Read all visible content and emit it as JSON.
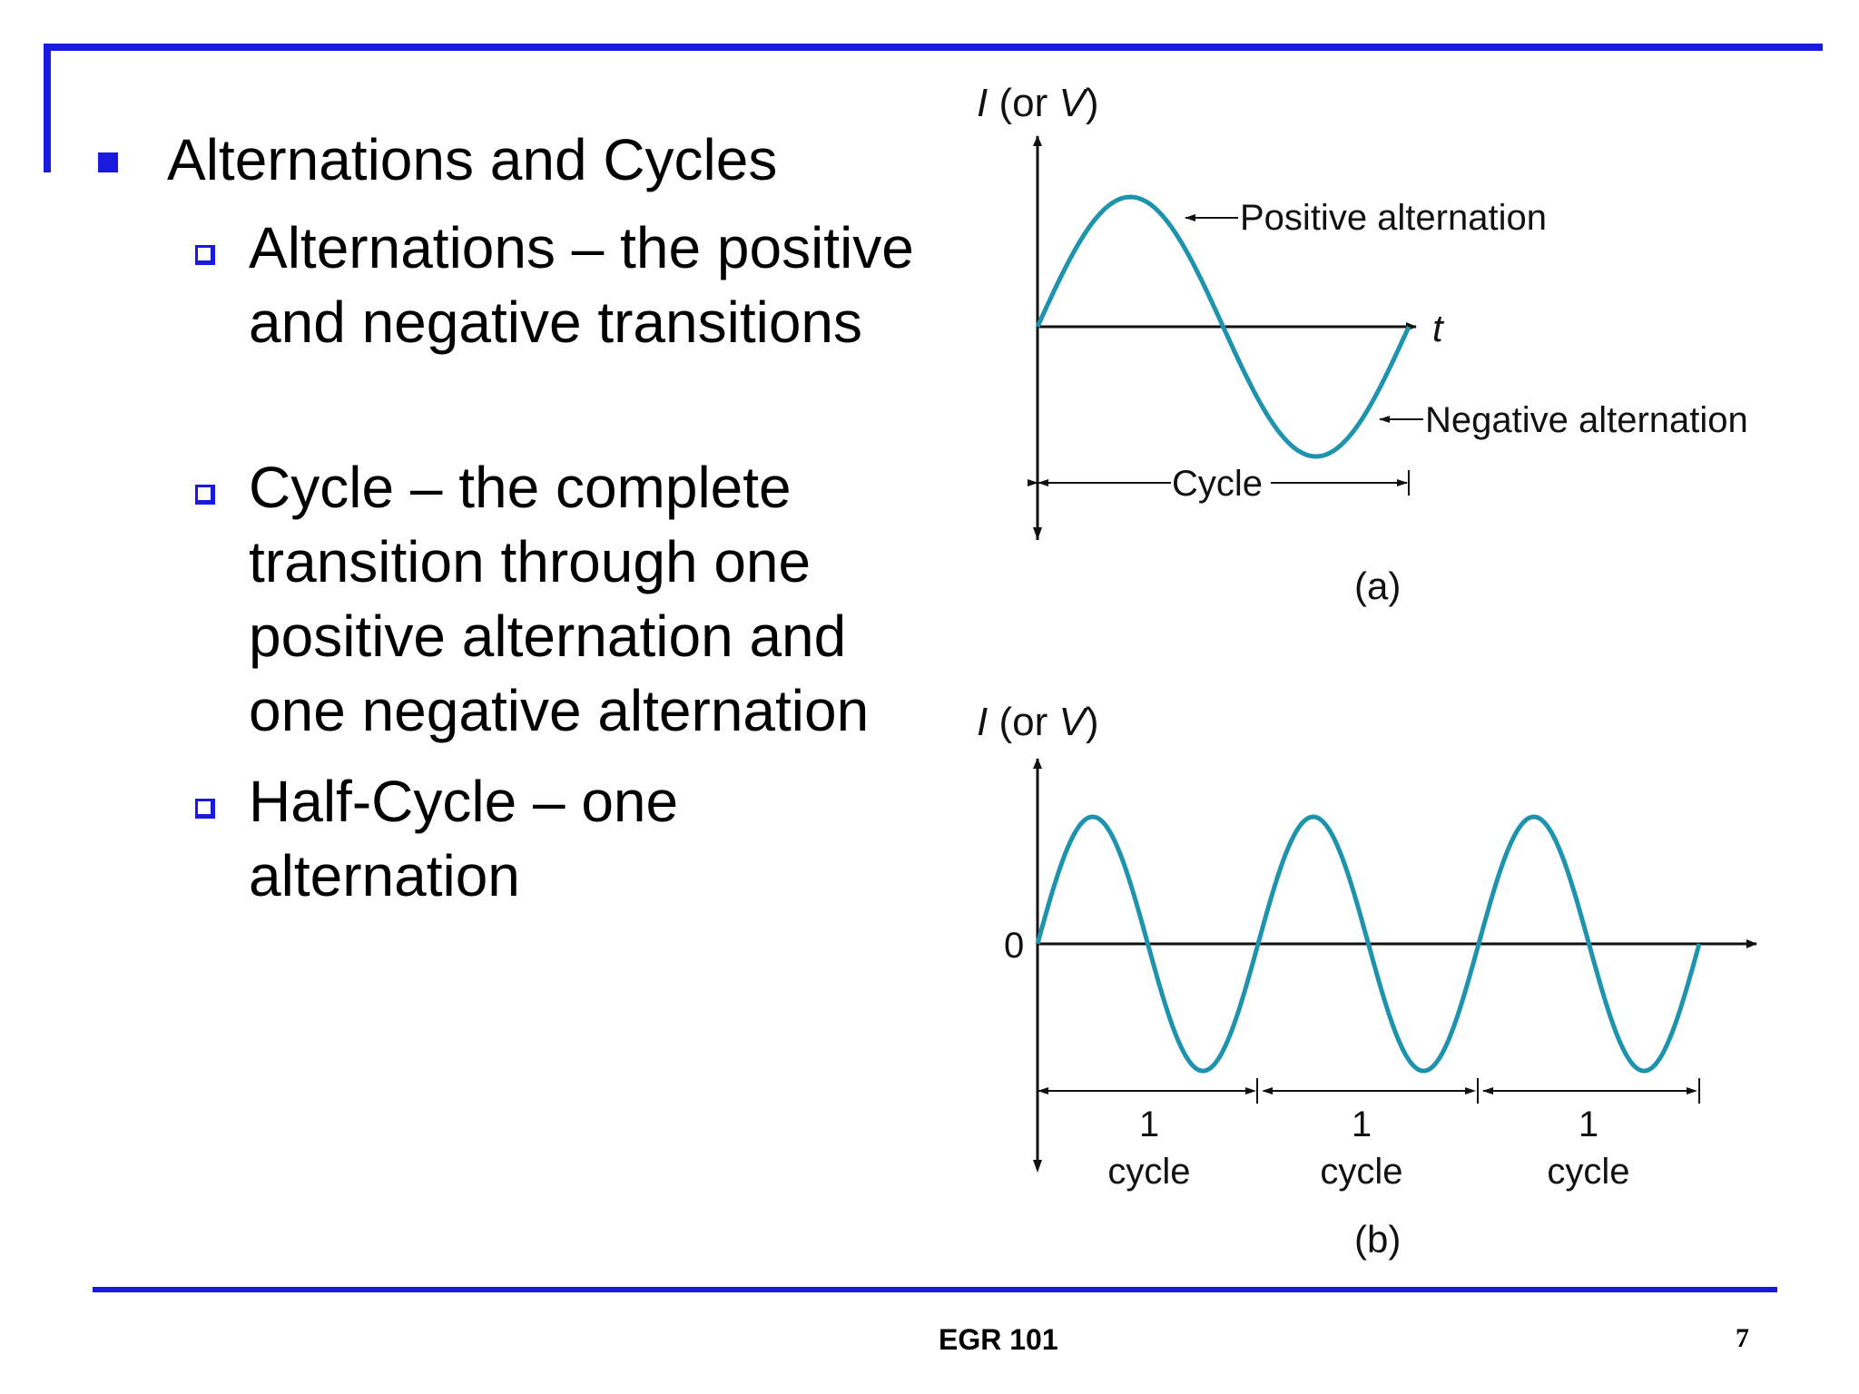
{
  "slide": {
    "bullet_main": "Alternations and Cycles",
    "sub_bullets": [
      "Alternations – the positive and negative transitions",
      "Cycle – the complete transition through one positive alternation and one negative alternation",
      "Half-Cycle – one alternation"
    ]
  },
  "figure_a": {
    "y_axis_label_italic_1": "I",
    "y_axis_label_mid": " (or ",
    "y_axis_label_italic_2": "V",
    "y_axis_label_end": ")",
    "x_axis_label": "t",
    "positive_label": "Positive alternation",
    "negative_label": "Negative alternation",
    "cycle_label": "Cycle",
    "caption": "(a)"
  },
  "figure_b": {
    "y_axis_label_italic_1": "I",
    "y_axis_label_mid": " (or ",
    "y_axis_label_italic_2": "V",
    "y_axis_label_end": ")",
    "zero_label": "0",
    "cycle_labels": [
      {
        "num": "1",
        "word": "cycle"
      },
      {
        "num": "1",
        "word": "cycle"
      },
      {
        "num": "1",
        "word": "cycle"
      }
    ],
    "caption": "(b)"
  },
  "footer": {
    "course": "EGR 101",
    "page": "7"
  },
  "colors": {
    "accent_blue": "#1a1adf",
    "wave_teal": "#1e93ad"
  }
}
